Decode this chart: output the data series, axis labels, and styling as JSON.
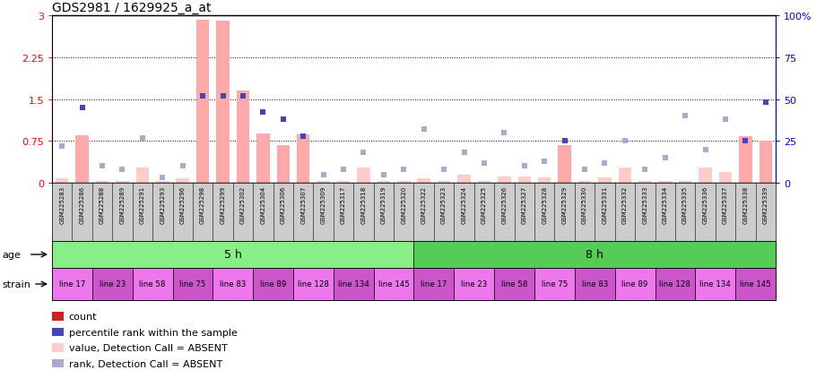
{
  "title": "GDS2981 / 1629925_a_at",
  "samples": [
    "GSM225283",
    "GSM225286",
    "GSM225288",
    "GSM225289",
    "GSM225291",
    "GSM225293",
    "GSM225296",
    "GSM225298",
    "GSM225299",
    "GSM225302",
    "GSM225304",
    "GSM225306",
    "GSM225307",
    "GSM225309",
    "GSM225317",
    "GSM225318",
    "GSM225319",
    "GSM225320",
    "GSM225322",
    "GSM225323",
    "GSM225324",
    "GSM225325",
    "GSM225326",
    "GSM225327",
    "GSM225328",
    "GSM225329",
    "GSM225330",
    "GSM225331",
    "GSM225332",
    "GSM225333",
    "GSM225334",
    "GSM225335",
    "GSM225336",
    "GSM225337",
    "GSM225338",
    "GSM225339"
  ],
  "bar_values": [
    0.08,
    0.85,
    0.04,
    0.04,
    0.27,
    0.04,
    0.08,
    2.92,
    2.91,
    1.65,
    0.88,
    0.68,
    0.87,
    0.04,
    0.04,
    0.27,
    0.04,
    0.04,
    0.08,
    0.04,
    0.15,
    0.04,
    0.12,
    0.12,
    0.1,
    0.68,
    0.04,
    0.1,
    0.27,
    0.04,
    0.04,
    0.04,
    0.27,
    0.2,
    0.83,
    0.75
  ],
  "bar_absent": [
    true,
    false,
    true,
    true,
    true,
    true,
    true,
    false,
    false,
    false,
    false,
    false,
    false,
    true,
    true,
    true,
    true,
    true,
    true,
    true,
    true,
    true,
    true,
    true,
    true,
    false,
    true,
    true,
    true,
    true,
    true,
    true,
    true,
    true,
    false,
    false
  ],
  "rank_values": [
    22,
    45,
    10,
    8,
    27,
    3,
    10,
    52,
    52,
    52,
    42,
    38,
    28,
    5,
    8,
    18,
    5,
    8,
    32,
    8,
    18,
    12,
    30,
    10,
    13,
    25,
    8,
    12,
    25,
    8,
    15,
    40,
    20,
    38,
    25,
    48
  ],
  "rank_absent": [
    true,
    false,
    true,
    true,
    true,
    true,
    true,
    false,
    false,
    false,
    false,
    false,
    false,
    true,
    true,
    true,
    true,
    true,
    true,
    true,
    true,
    true,
    true,
    true,
    true,
    false,
    true,
    true,
    true,
    true,
    true,
    true,
    true,
    true,
    false,
    false
  ],
  "ylim_left": [
    0,
    3
  ],
  "ylim_right": [
    0,
    100
  ],
  "yticks_left": [
    0,
    0.75,
    1.5,
    2.25,
    3.0
  ],
  "yticks_right": [
    0,
    25,
    50,
    75,
    100
  ],
  "bar_color_present": "#ffaaaa",
  "bar_color_absent": "#ffcccc",
  "dot_color_present": "#4444bb",
  "dot_color_absent": "#aaaacc",
  "age_5h_color": "#88ee88",
  "age_8h_color": "#55cc55",
  "strain_color_a": "#ee77ee",
  "strain_color_b": "#cc55cc",
  "age_groups": [
    {
      "label": "5 h",
      "start": 0,
      "end": 18
    },
    {
      "label": "8 h",
      "start": 18,
      "end": 36
    }
  ],
  "strain_groups": [
    {
      "label": "line 17",
      "start": 0,
      "end": 2
    },
    {
      "label": "line 23",
      "start": 2,
      "end": 4
    },
    {
      "label": "line 58",
      "start": 4,
      "end": 6
    },
    {
      "label": "line 75",
      "start": 6,
      "end": 8
    },
    {
      "label": "line 83",
      "start": 8,
      "end": 10
    },
    {
      "label": "line 89",
      "start": 10,
      "end": 12
    },
    {
      "label": "line 128",
      "start": 12,
      "end": 14
    },
    {
      "label": "line 134",
      "start": 14,
      "end": 16
    },
    {
      "label": "line 145",
      "start": 16,
      "end": 18
    },
    {
      "label": "line 17",
      "start": 18,
      "end": 20
    },
    {
      "label": "line 23",
      "start": 20,
      "end": 22
    },
    {
      "label": "line 58",
      "start": 22,
      "end": 24
    },
    {
      "label": "line 75",
      "start": 24,
      "end": 26
    },
    {
      "label": "line 83",
      "start": 26,
      "end": 28
    },
    {
      "label": "line 89",
      "start": 28,
      "end": 30
    },
    {
      "label": "line 128",
      "start": 30,
      "end": 32
    },
    {
      "label": "line 134",
      "start": 32,
      "end": 34
    },
    {
      "label": "line 145",
      "start": 34,
      "end": 36
    }
  ],
  "legend_items": [
    {
      "color": "#cc2222",
      "label": "count"
    },
    {
      "color": "#4444bb",
      "label": "percentile rank within the sample"
    },
    {
      "color": "#ffcccc",
      "label": "value, Detection Call = ABSENT"
    },
    {
      "color": "#aaaacc",
      "label": "rank, Detection Call = ABSENT"
    }
  ]
}
